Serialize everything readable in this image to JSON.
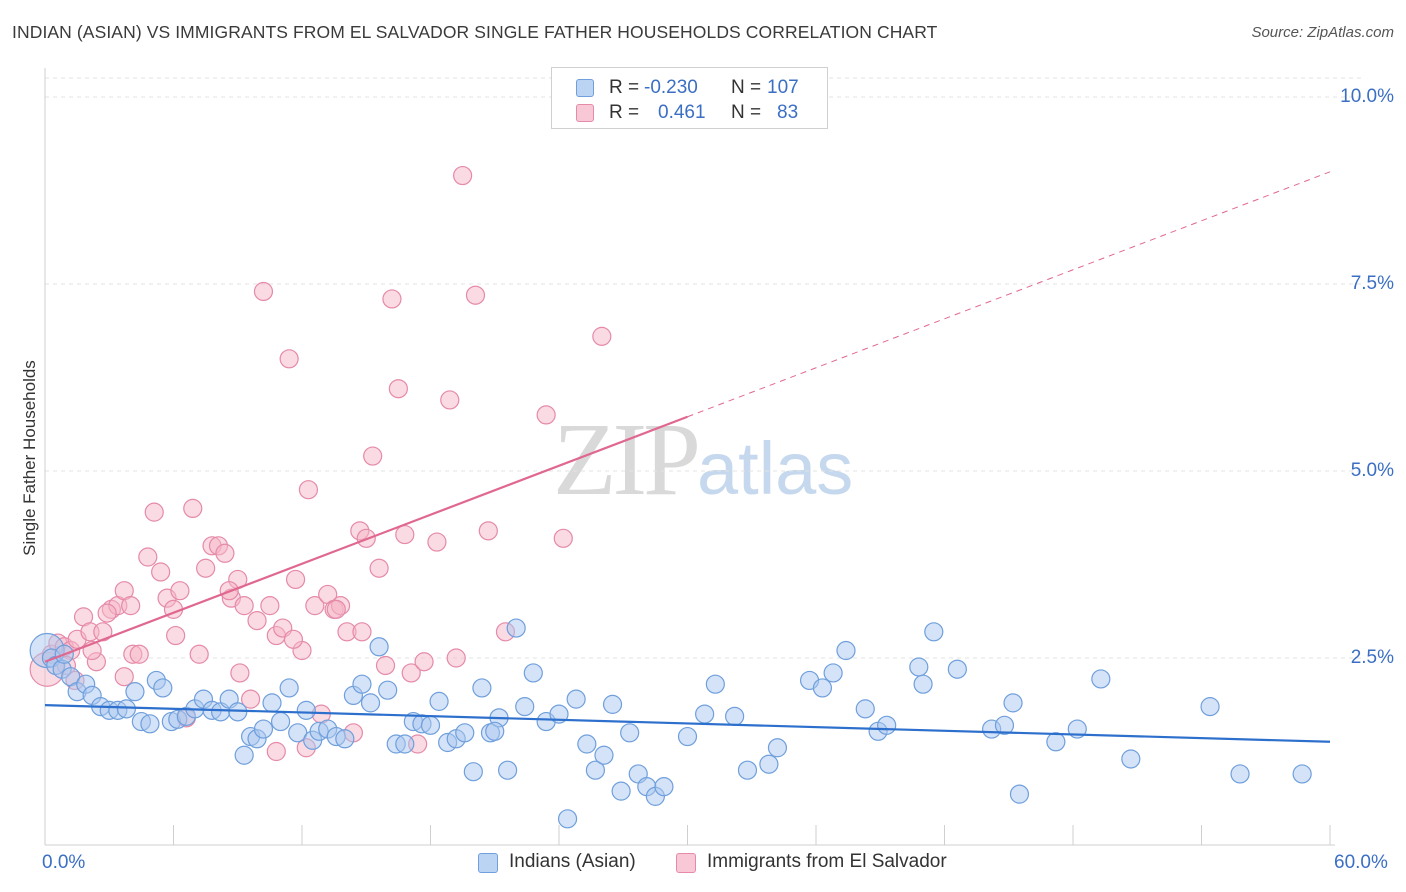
{
  "header": {
    "title": "INDIAN (ASIAN) VS IMMIGRANTS FROM EL SALVADOR SINGLE FATHER HOUSEHOLDS CORRELATION CHART",
    "source": "Source: ZipAtlas.com"
  },
  "watermark": {
    "zip": "ZIP",
    "atlas": "atlas"
  },
  "legend": {
    "rows": [
      {
        "r_label": "R =",
        "r_value": "-0.230",
        "n_label": "N =",
        "n_value": "107"
      },
      {
        "r_label": "R =",
        "r_value": "0.461",
        "n_label": "N =",
        "n_value": "83"
      }
    ]
  },
  "colors": {
    "blue_fill": "#a9c8f0",
    "blue_stroke": "#6f9fdc",
    "blue_line": "#2d6fcc",
    "pink_fill": "#f5b6c8",
    "pink_stroke": "#e58aa8",
    "pink_line": "#e06890",
    "tick_text": "#3b6fc4",
    "grid": "#e3e3e3"
  },
  "chart_data": {
    "type": "scatter",
    "title": "INDIAN (ASIAN) VS IMMIGRANTS FROM EL SALVADOR SINGLE FATHER HOUSEHOLDS CORRELATION CHART",
    "xlabel": "",
    "ylabel": "Single Father Households",
    "xlim": [
      0,
      60
    ],
    "ylim": [
      0,
      10.5
    ],
    "x_tick_labels": [
      "0.0%",
      "60.0%"
    ],
    "y_ticks": [
      2.5,
      5.0,
      7.5,
      10.0
    ],
    "y_tick_labels": [
      "2.5%",
      "5.0%",
      "7.5%",
      "10.0%"
    ],
    "grid": "horizontal dashed",
    "legend_position": "bottom",
    "series": [
      {
        "name": "Indians (Asian)",
        "color": "#a9c8f0",
        "trend": {
          "x0": 0,
          "y0": 1.87,
          "x1": 60,
          "y1": 1.38
        },
        "points": [
          [
            0.1,
            2.6
          ],
          [
            0.3,
            2.5
          ],
          [
            0.5,
            2.4
          ],
          [
            0.8,
            2.35
          ],
          [
            1.2,
            2.25
          ],
          [
            1.5,
            2.05
          ],
          [
            1.9,
            2.15
          ],
          [
            2.2,
            2.0
          ],
          [
            2.6,
            1.85
          ],
          [
            3.0,
            1.8
          ],
          [
            3.4,
            1.8
          ],
          [
            3.8,
            1.82
          ],
          [
            4.2,
            2.05
          ],
          [
            4.5,
            1.65
          ],
          [
            4.9,
            1.62
          ],
          [
            5.2,
            2.2
          ],
          [
            5.5,
            2.1
          ],
          [
            5.9,
            1.65
          ],
          [
            6.2,
            1.68
          ],
          [
            6.6,
            1.72
          ],
          [
            7.0,
            1.82
          ],
          [
            7.4,
            1.95
          ],
          [
            7.8,
            1.8
          ],
          [
            8.2,
            1.78
          ],
          [
            8.6,
            1.95
          ],
          [
            9.0,
            1.78
          ],
          [
            9.3,
            1.2
          ],
          [
            9.6,
            1.45
          ],
          [
            9.9,
            1.42
          ],
          [
            10.2,
            1.55
          ],
          [
            10.6,
            1.9
          ],
          [
            11.0,
            1.65
          ],
          [
            11.4,
            2.1
          ],
          [
            11.8,
            1.5
          ],
          [
            12.2,
            1.8
          ],
          [
            12.5,
            1.4
          ],
          [
            12.8,
            1.52
          ],
          [
            13.2,
            1.55
          ],
          [
            13.6,
            1.45
          ],
          [
            14.0,
            1.42
          ],
          [
            14.4,
            2.0
          ],
          [
            14.8,
            2.15
          ],
          [
            15.2,
            1.9
          ],
          [
            15.6,
            2.65
          ],
          [
            16.0,
            2.07
          ],
          [
            16.4,
            1.35
          ],
          [
            16.8,
            1.35
          ],
          [
            17.2,
            1.65
          ],
          [
            17.6,
            1.62
          ],
          [
            18.0,
            1.6
          ],
          [
            18.4,
            1.92
          ],
          [
            18.8,
            1.37
          ],
          [
            19.2,
            1.42
          ],
          [
            19.6,
            1.5
          ],
          [
            20.0,
            0.98
          ],
          [
            20.4,
            2.1
          ],
          [
            20.8,
            1.5
          ],
          [
            21.2,
            1.7
          ],
          [
            21.6,
            1.0
          ],
          [
            22.0,
            2.9
          ],
          [
            22.4,
            1.85
          ],
          [
            22.8,
            2.3
          ],
          [
            23.4,
            1.65
          ],
          [
            24.0,
            1.75
          ],
          [
            24.4,
            0.35
          ],
          [
            24.8,
            1.95
          ],
          [
            25.3,
            1.35
          ],
          [
            25.7,
            1.0
          ],
          [
            26.1,
            1.2
          ],
          [
            26.5,
            1.88
          ],
          [
            26.9,
            0.72
          ],
          [
            27.3,
            1.5
          ],
          [
            27.7,
            0.95
          ],
          [
            28.1,
            0.78
          ],
          [
            28.5,
            0.65
          ],
          [
            28.9,
            0.78
          ],
          [
            30.0,
            1.45
          ],
          [
            30.8,
            1.75
          ],
          [
            31.3,
            2.15
          ],
          [
            32.2,
            1.72
          ],
          [
            32.8,
            1.0
          ],
          [
            33.8,
            1.08
          ],
          [
            34.2,
            1.3
          ],
          [
            35.7,
            2.2
          ],
          [
            36.3,
            2.1
          ],
          [
            36.8,
            2.3
          ],
          [
            37.4,
            2.6
          ],
          [
            38.3,
            1.82
          ],
          [
            38.9,
            1.52
          ],
          [
            39.3,
            1.6
          ],
          [
            40.8,
            2.38
          ],
          [
            41.0,
            2.15
          ],
          [
            41.5,
            2.85
          ],
          [
            42.6,
            2.35
          ],
          [
            44.2,
            1.55
          ],
          [
            44.8,
            1.6
          ],
          [
            45.2,
            1.9
          ],
          [
            45.5,
            0.68
          ],
          [
            47.2,
            1.38
          ],
          [
            48.2,
            1.55
          ],
          [
            49.3,
            2.22
          ],
          [
            50.7,
            1.15
          ],
          [
            54.4,
            1.85
          ],
          [
            55.8,
            0.95
          ],
          [
            58.7,
            0.95
          ],
          [
            0.9,
            2.55
          ],
          [
            21.0,
            1.52
          ]
        ]
      },
      {
        "name": "Immigrants from El Salvador",
        "color": "#f5b6c8",
        "trend": {
          "x0": 0,
          "y0": 2.45,
          "x1": 60,
          "y1": 9.0,
          "solid_until_x": 30
        },
        "points": [
          [
            0.1,
            2.35
          ],
          [
            0.3,
            2.55
          ],
          [
            0.6,
            2.7
          ],
          [
            0.9,
            2.65
          ],
          [
            1.2,
            2.6
          ],
          [
            1.5,
            2.75
          ],
          [
            1.8,
            3.05
          ],
          [
            2.1,
            2.85
          ],
          [
            2.4,
            2.45
          ],
          [
            2.7,
            2.85
          ],
          [
            3.1,
            3.15
          ],
          [
            3.4,
            3.2
          ],
          [
            3.7,
            3.4
          ],
          [
            4.1,
            2.55
          ],
          [
            4.4,
            2.55
          ],
          [
            4.8,
            3.85
          ],
          [
            5.1,
            4.45
          ],
          [
            5.4,
            3.65
          ],
          [
            5.7,
            3.3
          ],
          [
            6.0,
            3.15
          ],
          [
            6.3,
            3.4
          ],
          [
            6.6,
            1.7
          ],
          [
            6.9,
            4.5
          ],
          [
            7.2,
            2.55
          ],
          [
            7.5,
            3.7
          ],
          [
            7.8,
            4.0
          ],
          [
            8.1,
            4.0
          ],
          [
            8.4,
            3.9
          ],
          [
            8.7,
            3.3
          ],
          [
            9.0,
            3.55
          ],
          [
            9.3,
            3.2
          ],
          [
            9.6,
            1.95
          ],
          [
            9.9,
            3.0
          ],
          [
            10.2,
            7.4
          ],
          [
            10.5,
            3.2
          ],
          [
            10.8,
            2.8
          ],
          [
            11.1,
            2.9
          ],
          [
            11.4,
            6.5
          ],
          [
            11.7,
            3.55
          ],
          [
            12.0,
            2.6
          ],
          [
            12.3,
            4.75
          ],
          [
            12.6,
            3.2
          ],
          [
            12.9,
            1.75
          ],
          [
            13.2,
            3.35
          ],
          [
            13.5,
            3.15
          ],
          [
            13.8,
            3.2
          ],
          [
            14.1,
            2.85
          ],
          [
            14.4,
            1.5
          ],
          [
            14.7,
            4.2
          ],
          [
            15.0,
            4.1
          ],
          [
            15.3,
            5.2
          ],
          [
            15.6,
            3.7
          ],
          [
            15.9,
            2.4
          ],
          [
            16.2,
            7.3
          ],
          [
            16.5,
            6.1
          ],
          [
            16.8,
            4.15
          ],
          [
            17.1,
            2.3
          ],
          [
            17.4,
            1.35
          ],
          [
            17.7,
            2.45
          ],
          [
            18.3,
            4.05
          ],
          [
            18.9,
            5.95
          ],
          [
            19.5,
            8.95
          ],
          [
            20.1,
            7.35
          ],
          [
            20.7,
            4.2
          ],
          [
            23.4,
            5.75
          ],
          [
            24.2,
            4.1
          ],
          [
            26.0,
            6.8
          ],
          [
            1.0,
            2.4
          ],
          [
            1.4,
            2.2
          ],
          [
            2.9,
            3.1
          ],
          [
            6.1,
            2.8
          ],
          [
            8.6,
            3.4
          ],
          [
            9.1,
            2.3
          ],
          [
            12.2,
            1.3
          ],
          [
            13.6,
            3.15
          ],
          [
            14.8,
            2.85
          ],
          [
            19.2,
            2.5
          ],
          [
            21.5,
            2.85
          ],
          [
            11.6,
            2.75
          ],
          [
            4.0,
            3.2
          ],
          [
            2.2,
            2.6
          ],
          [
            3.7,
            2.25
          ],
          [
            10.8,
            1.25
          ]
        ]
      }
    ]
  },
  "bottom_legend": [
    {
      "label": "Indians (Asian)"
    },
    {
      "label": "Immigrants from El Salvador"
    }
  ]
}
